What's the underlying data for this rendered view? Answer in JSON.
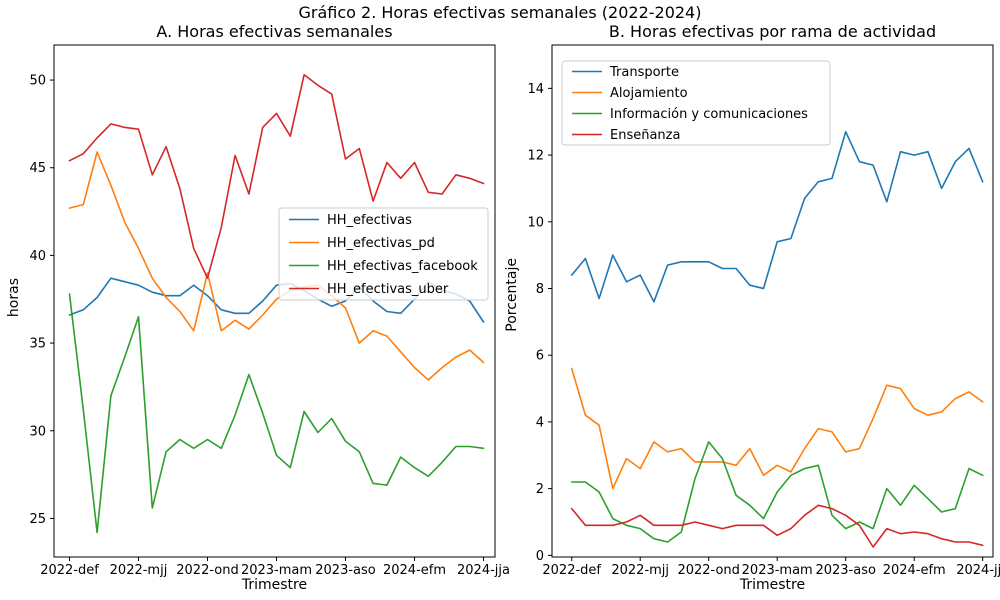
{
  "figure": {
    "suptitle": "Gráfico 2. Horas efectivas semanales (2022-2024)",
    "background": "#ffffff",
    "text_color": "#000000",
    "spine_color": "#000000",
    "legend_border_color": "#cccccc"
  },
  "chart_data": [
    {
      "type": "line",
      "title": "A. Horas efectivas semanales",
      "xlabel": "Trimestre",
      "ylabel": "horas",
      "grid": false,
      "legend_position": "center-right",
      "x_tick_positions": [
        0,
        5,
        10,
        15,
        20,
        25,
        30
      ],
      "x_tick_labels": [
        "2022-def",
        "2022-mjj",
        "2022-ond",
        "2023-mam",
        "2023-aso",
        "2024-efm",
        "2024-jja"
      ],
      "y_ticks": [
        25,
        30,
        35,
        40,
        45,
        50
      ],
      "ylim": [
        22.8,
        52.0
      ],
      "categories": [
        "2022-def",
        "2022-efm",
        "2022-fma",
        "2022-mam",
        "2022-amj",
        "2022-mjj",
        "2022-jja",
        "2022-jas",
        "2022-aso",
        "2022-son",
        "2022-ond",
        "2022-nde",
        "2023-def",
        "2023-efm",
        "2023-fma",
        "2023-mam",
        "2023-amj",
        "2023-mjj",
        "2023-jja",
        "2023-jas",
        "2023-aso",
        "2023-son",
        "2023-ond",
        "2023-nde",
        "2024-def",
        "2024-efm",
        "2024-fma",
        "2024-mam",
        "2024-amj",
        "2024-mjj",
        "2024-jja"
      ],
      "series": [
        {
          "name": "HH_efectivas",
          "color": "#1f77b4",
          "values": [
            36.6,
            36.9,
            37.6,
            38.7,
            38.5,
            38.3,
            37.9,
            37.7,
            37.7,
            38.3,
            37.7,
            36.9,
            36.7,
            36.7,
            37.4,
            38.3,
            38.4,
            38.0,
            37.5,
            37.1,
            37.4,
            38.2,
            37.4,
            36.8,
            36.7,
            37.5,
            38.5,
            38.0,
            37.8,
            37.4,
            36.2
          ]
        },
        {
          "name": "HH_efectivas_pd",
          "color": "#ff7f0e",
          "values": [
            42.7,
            42.9,
            45.9,
            44.0,
            41.9,
            40.4,
            38.7,
            37.6,
            36.8,
            35.7,
            39.0,
            35.7,
            36.3,
            35.8,
            36.6,
            37.5,
            38.0,
            38.2,
            38.3,
            37.7,
            37.0,
            35.0,
            35.7,
            35.4,
            34.5,
            33.6,
            32.9,
            33.6,
            34.2,
            34.6,
            33.9
          ]
        },
        {
          "name": "HH_efectivas_facebook",
          "color": "#2ca02c",
          "values": [
            37.8,
            31.2,
            24.2,
            32.0,
            34.2,
            36.5,
            25.6,
            28.8,
            29.5,
            29.0,
            29.5,
            29.0,
            30.9,
            33.2,
            31.0,
            28.6,
            27.9,
            31.1,
            29.9,
            30.7,
            29.4,
            28.8,
            27.0,
            26.9,
            28.5,
            27.9,
            27.4,
            28.2,
            29.1,
            29.1,
            29.0
          ]
        },
        {
          "name": "HH_efectivas_uber",
          "color": "#d62728",
          "values": [
            45.4,
            45.8,
            46.7,
            47.5,
            47.3,
            47.2,
            44.6,
            46.2,
            43.8,
            40.4,
            38.7,
            41.6,
            45.7,
            43.5,
            47.3,
            48.1,
            46.8,
            50.3,
            49.7,
            49.2,
            45.5,
            46.1,
            43.1,
            45.3,
            44.4,
            45.3,
            43.6,
            43.5,
            44.6,
            44.4,
            44.1
          ]
        }
      ]
    },
    {
      "type": "line",
      "title": "B. Horas efectivas por rama de actividad",
      "xlabel": "Trimestre",
      "ylabel": "Porcentaje",
      "grid": false,
      "legend_position": "upper-left",
      "x_tick_positions": [
        0,
        5,
        10,
        15,
        20,
        25,
        30
      ],
      "x_tick_labels": [
        "2022-def",
        "2022-mjj",
        "2022-ond",
        "2023-mam",
        "2023-aso",
        "2024-efm",
        "2024-jja"
      ],
      "y_ticks": [
        0,
        2,
        4,
        6,
        8,
        10,
        12,
        14
      ],
      "ylim": [
        -0.05,
        15.3
      ],
      "categories": [
        "2022-def",
        "2022-efm",
        "2022-fma",
        "2022-mam",
        "2022-amj",
        "2022-mjj",
        "2022-jja",
        "2022-jas",
        "2022-aso",
        "2022-son",
        "2022-ond",
        "2022-nde",
        "2023-def",
        "2023-efm",
        "2023-fma",
        "2023-mam",
        "2023-amj",
        "2023-mjj",
        "2023-jja",
        "2023-jas",
        "2023-aso",
        "2023-son",
        "2023-ond",
        "2023-nde",
        "2024-def",
        "2024-efm",
        "2024-fma",
        "2024-mam",
        "2024-amj",
        "2024-mjj",
        "2024-jja"
      ],
      "series": [
        {
          "name": "Transporte",
          "color": "#1f77b4",
          "values": [
            8.4,
            8.9,
            7.7,
            9.0,
            8.2,
            8.4,
            7.6,
            8.7,
            8.8,
            8.8,
            8.8,
            8.6,
            8.6,
            8.1,
            8.0,
            9.4,
            9.5,
            10.7,
            11.2,
            11.3,
            12.7,
            11.8,
            11.7,
            10.6,
            12.1,
            12.0,
            12.1,
            11.0,
            11.8,
            12.2,
            11.2
          ]
        },
        {
          "name": "Alojamiento",
          "color": "#ff7f0e",
          "values": [
            5.6,
            4.2,
            3.9,
            2.0,
            2.9,
            2.6,
            3.4,
            3.1,
            3.2,
            2.8,
            2.8,
            2.8,
            2.7,
            3.2,
            2.4,
            2.7,
            2.5,
            3.2,
            3.8,
            3.7,
            3.1,
            3.2,
            4.1,
            5.1,
            5.0,
            4.4,
            4.2,
            4.3,
            4.7,
            4.9,
            4.6
          ]
        },
        {
          "name": "Información y comunicaciones",
          "color": "#2ca02c",
          "values": [
            2.2,
            2.2,
            1.9,
            1.1,
            0.9,
            0.8,
            0.5,
            0.4,
            0.7,
            2.3,
            3.4,
            2.9,
            1.8,
            1.5,
            1.1,
            1.9,
            2.4,
            2.6,
            2.7,
            1.2,
            0.8,
            1.0,
            0.8,
            2.0,
            1.5,
            2.1,
            1.7,
            1.3,
            1.4,
            2.6,
            2.4
          ]
        },
        {
          "name": "Enseñanza",
          "color": "#d62728",
          "values": [
            1.4,
            0.9,
            0.9,
            0.9,
            1.0,
            1.2,
            0.9,
            0.9,
            0.9,
            1.0,
            0.9,
            0.8,
            0.9,
            0.9,
            0.9,
            0.6,
            0.8,
            1.2,
            1.5,
            1.4,
            1.2,
            0.9,
            0.25,
            0.8,
            0.65,
            0.7,
            0.65,
            0.5,
            0.4,
            0.4,
            0.3
          ]
        }
      ]
    }
  ]
}
